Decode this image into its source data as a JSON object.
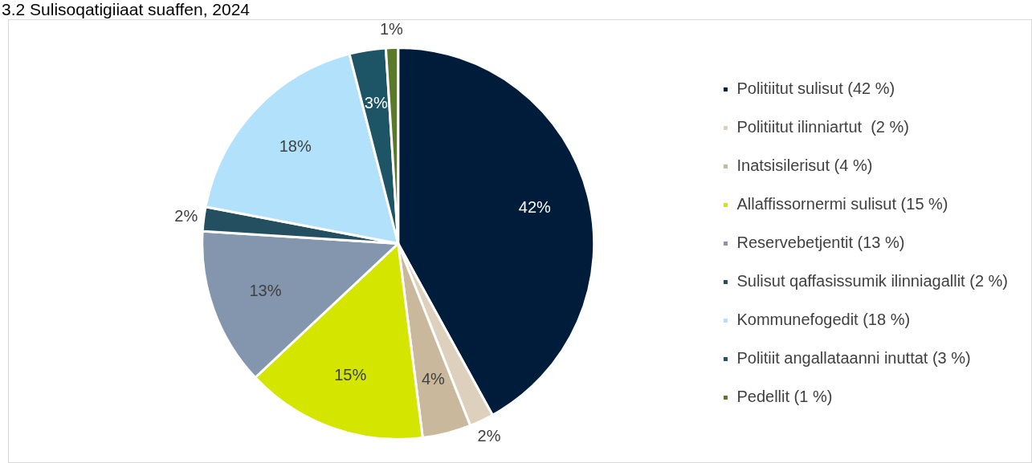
{
  "chart_data": {
    "type": "pie",
    "title": "3.2 Sulisoqatigiiaat suaffen, 2024",
    "categories": [
      "Politiitut sulisut (42 %)",
      "Politiitut ilinniartut  (2 %)",
      "Inatsisilerisut (4 %)",
      "Allaffissornermi sulisut (15 %)",
      "Reservebetjentit (13 %)",
      "Sulisut qaffasissumik ilinniagallit (2 %)",
      "Kommunefogedit (18 %)",
      "Politiit angallataanni inuttat (3 %)",
      "Pedellit (1 %)"
    ],
    "values": [
      42,
      2,
      4,
      15,
      13,
      2,
      18,
      3,
      1
    ],
    "value_labels": [
      "42%",
      "2%",
      "4%",
      "15%",
      "13%",
      "2%",
      "18%",
      "3%",
      "1%"
    ],
    "colors": [
      "#001c3b",
      "#ddd0bc",
      "#c9b89c",
      "#d4e600",
      "#8396ae",
      "#234f60",
      "#b1e1fb",
      "#1e5566",
      "#5a7a2a"
    ],
    "legend": "right"
  }
}
